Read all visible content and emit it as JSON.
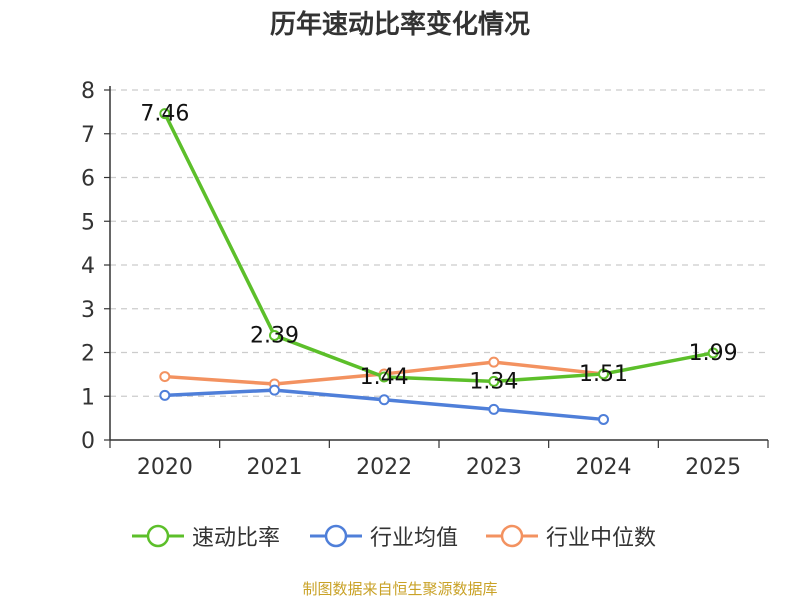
{
  "chart_data": {
    "type": "line",
    "title": "历年速动比率变化情况",
    "categories": [
      "2020",
      "2021",
      "2022",
      "2023",
      "2024",
      "2025"
    ],
    "ylim": [
      0,
      8
    ],
    "yticks": [
      "0",
      "1",
      "2",
      "3",
      "4",
      "5",
      "6",
      "7",
      "8"
    ],
    "grid": true,
    "series": [
      {
        "name": "速动比率",
        "color": "#5cbf2a",
        "values": [
          7.46,
          2.39,
          1.44,
          1.34,
          1.51,
          1.99
        ],
        "labels": [
          "7.46",
          "2.39",
          "1.44",
          "1.34",
          "1.51",
          "1.99"
        ]
      },
      {
        "name": "行业均值",
        "color": "#4f7fd9",
        "values": [
          1.02,
          1.14,
          0.92,
          0.7,
          0.47,
          null
        ]
      },
      {
        "name": "行业中位数",
        "color": "#f39260",
        "values": [
          1.45,
          1.28,
          1.51,
          1.78,
          1.51,
          null
        ]
      }
    ],
    "legend_position": "bottom"
  },
  "footer": {
    "source": "制图数据来自恒生聚源数据库",
    "source_color": "#c9a227"
  }
}
